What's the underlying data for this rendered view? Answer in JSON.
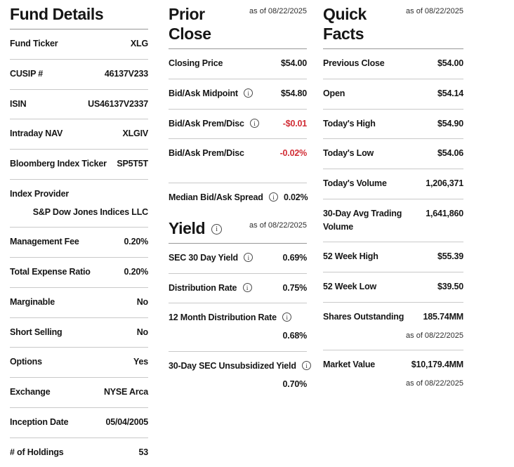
{
  "colors": {
    "negative": "#d12d35",
    "divider": "#c9c9c9",
    "header_rule": "#979797",
    "text": "#161616"
  },
  "icons": {
    "info": "i"
  },
  "fund_details": {
    "title": "Fund Details",
    "rows": [
      {
        "label": "Fund Ticker",
        "value": "XLG"
      },
      {
        "label": "CUSIP #",
        "value": "46137V233"
      },
      {
        "label": "ISIN",
        "value": "US46137V2337"
      },
      {
        "label": "Intraday NAV",
        "value": "XLGIV"
      },
      {
        "label": "Bloomberg Index Ticker",
        "value": "SP5T5T"
      },
      {
        "label": "Index Provider",
        "value": "S&P Dow Jones Indices LLC",
        "wrap": true
      },
      {
        "label": "Management Fee",
        "value": "0.20%"
      },
      {
        "label": "Total Expense Ratio",
        "value": "0.20%"
      },
      {
        "label": "Marginable",
        "value": "No"
      },
      {
        "label": "Short Selling",
        "value": "No"
      },
      {
        "label": "Options",
        "value": "Yes"
      },
      {
        "label": "Exchange",
        "value": "NYSE Arca"
      },
      {
        "label": "Inception Date",
        "value": "05/04/2005"
      },
      {
        "label": "# of Holdings",
        "value": "53",
        "last": true
      }
    ]
  },
  "prior_close": {
    "title": "Prior Close",
    "as_of": "as of 08/22/2025",
    "rows": [
      {
        "label": "Closing Price",
        "value": "$54.00"
      },
      {
        "label": "Bid/Ask Midpoint",
        "info": true,
        "value": "$54.80"
      },
      {
        "label": "Bid/Ask Prem/Disc",
        "info": true,
        "value": "-$0.01",
        "negative": true
      },
      {
        "label": "Bid/Ask Prem/Disc",
        "value": "-0.02%",
        "negative": true,
        "gap": true
      },
      {
        "label": "Median Bid/Ask Spread",
        "info": true,
        "value": "0.02%",
        "last": true
      }
    ]
  },
  "yield": {
    "title": "Yield",
    "as_of": "as of 08/22/2025",
    "rows": [
      {
        "label": "SEC 30 Day Yield",
        "info": true,
        "value": "0.69%"
      },
      {
        "label": "Distribution Rate",
        "info": true,
        "value": "0.75%"
      },
      {
        "label": "12 Month Distribution Rate",
        "info": true,
        "value": "0.68%",
        "wrap": true
      },
      {
        "label": "30-Day SEC Unsubsidized Yield",
        "info": true,
        "value": "0.70%",
        "wrap": true,
        "last": true
      }
    ]
  },
  "quick_facts": {
    "title": "Quick Facts",
    "as_of": "as of 08/22/2025",
    "rows": [
      {
        "label": "Previous Close",
        "value": "$54.00"
      },
      {
        "label": "Open",
        "value": "$54.14"
      },
      {
        "label": "Today's High",
        "value": "$54.90"
      },
      {
        "label": "Today's Low",
        "value": "$54.06"
      },
      {
        "label": "Today's Volume",
        "value": "1,206,371"
      },
      {
        "label": "30-Day Avg Trading Volume",
        "value": "1,641,860",
        "label_wrap": true
      },
      {
        "label": "52 Week High",
        "value": "$55.39"
      },
      {
        "label": "52 Week Low",
        "value": "$39.50"
      },
      {
        "label": "Shares Outstanding",
        "value": "185.74MM",
        "as_of": "as of 08/22/2025"
      },
      {
        "label": "Market Value",
        "value": "$10,179.4MM",
        "as_of": "as of 08/22/2025",
        "last": true
      }
    ]
  }
}
